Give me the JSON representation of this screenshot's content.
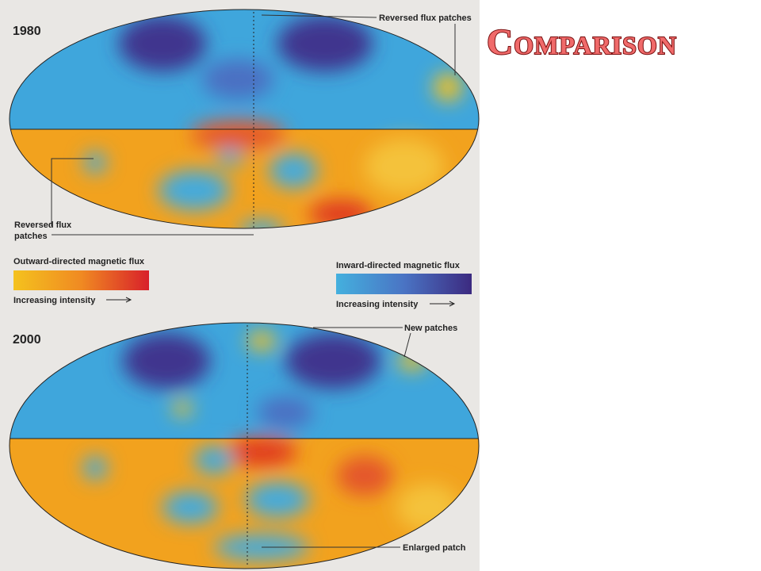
{
  "title": "Comparison",
  "maps": [
    {
      "year": "1980",
      "annotations": [
        {
          "lines": [
            "Reversed flux patches"
          ]
        },
        {
          "lines": [
            "Reversed flux",
            "patches"
          ]
        }
      ]
    },
    {
      "year": "2000",
      "annotations": [
        {
          "lines": [
            "New patches"
          ]
        },
        {
          "lines": [
            "Enlarged patch"
          ]
        }
      ]
    }
  ],
  "legend": {
    "outward": {
      "label": "Outward-directed magnetic flux",
      "note": "Increasing intensity"
    },
    "inward": {
      "label": "Inward-directed magnetic flux",
      "note": "Increasing intensity"
    }
  }
}
